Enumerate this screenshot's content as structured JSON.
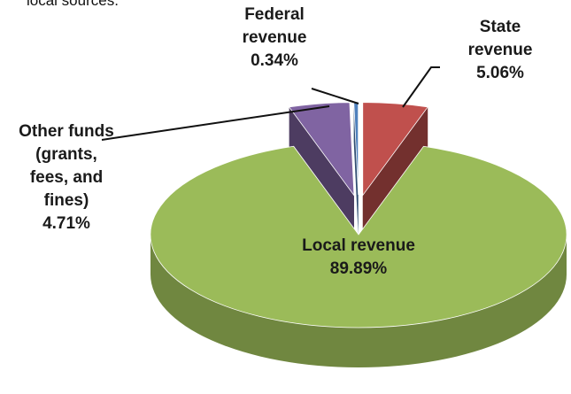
{
  "caption": "local sources.",
  "chart_data": {
    "type": "pie3d",
    "categories": [
      "State revenue",
      "Local revenue",
      "Other funds (grants, fees, and fines)",
      "Federal revenue"
    ],
    "values": [
      5.06,
      89.89,
      4.71,
      0.34
    ],
    "value_labels": [
      "5.06%",
      "89.89%",
      "4.71%",
      "0.34%"
    ],
    "colors": [
      "#c0504d",
      "#9bbb59",
      "#8064a2",
      "#4f81bd"
    ],
    "exploded": [
      true,
      false,
      true,
      true
    ]
  }
}
